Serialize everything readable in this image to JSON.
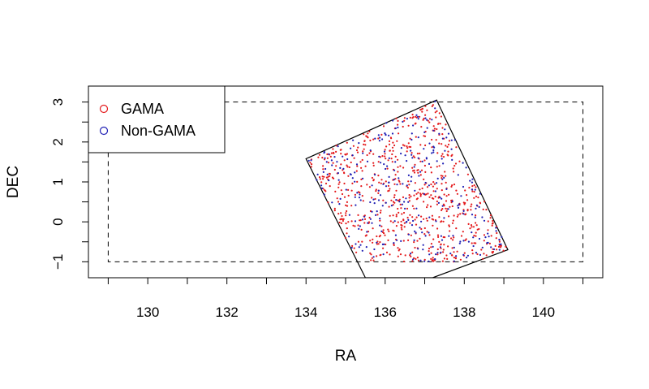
{
  "chart_data": {
    "type": "scatter",
    "title": "",
    "xlabel": "RA",
    "ylabel": "DEC",
    "xlim": [
      128.5,
      141.5
    ],
    "ylim": [
      -1.4,
      3.4
    ],
    "x_ticks": [
      130,
      132,
      134,
      136,
      138,
      140
    ],
    "x_tick_labels": [
      "130",
      "132",
      "134",
      "136",
      "138",
      "140"
    ],
    "y_ticks": [
      -1,
      0,
      1,
      2,
      3
    ],
    "y_tick_labels": [
      "−1",
      "0",
      "1",
      "2",
      "3"
    ],
    "grid": false,
    "legend": {
      "position": "top-left",
      "entries": [
        {
          "label": "GAMA",
          "color": "#e41a1c"
        },
        {
          "label": "Non-GAMA",
          "color": "#1f1fb4"
        }
      ]
    },
    "region_rectangle": {
      "style": "dashed",
      "ra": [
        129,
        141
      ],
      "dec": [
        -1,
        3
      ]
    },
    "field_polygon": {
      "style": "solid",
      "vertices": [
        [
          137.3,
          3.05
        ],
        [
          139.1,
          -0.7
        ],
        [
          137.2,
          -1.4
        ],
        [
          135.5,
          -1.4
        ],
        [
          134.0,
          1.58
        ]
      ]
    },
    "series": [
      {
        "name": "GAMA",
        "color": "#e41a1c",
        "generated_count": 700
      },
      {
        "name": "Non-GAMA",
        "color": "#1f1fb4",
        "generated_count": 300
      }
    ]
  }
}
